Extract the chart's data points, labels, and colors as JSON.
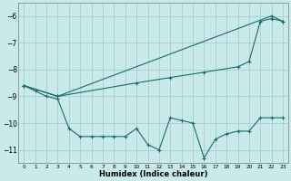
{
  "xlabel": "Humidex (Indice chaleur)",
  "background_color": "#c8eaea",
  "grid_color": "#aacece",
  "line_color": "#1a6b6b",
  "xlim": [
    -0.5,
    23.5
  ],
  "ylim": [
    -11.5,
    -5.5
  ],
  "yticks": [
    -11,
    -10,
    -9,
    -8,
    -7,
    -6
  ],
  "xticks": [
    0,
    1,
    2,
    3,
    4,
    5,
    6,
    7,
    8,
    9,
    10,
    11,
    12,
    13,
    14,
    15,
    16,
    17,
    18,
    19,
    20,
    21,
    22,
    23
  ],
  "line1_x": [
    0,
    1,
    2,
    3,
    4,
    5,
    6,
    7,
    8,
    9,
    10,
    11,
    12,
    13,
    14,
    15,
    16,
    17,
    18,
    19,
    20,
    21,
    22,
    23
  ],
  "line1_y": [
    -8.6,
    -8.8,
    -9.0,
    -9.1,
    -10.2,
    -10.5,
    -10.5,
    -10.5,
    -10.5,
    -10.5,
    -10.2,
    -10.8,
    -11.0,
    -9.8,
    -9.9,
    -10.0,
    -11.3,
    -10.6,
    -10.4,
    -10.3,
    -10.3,
    -9.8,
    -9.8,
    -9.8
  ],
  "line2_x": [
    0,
    3,
    10,
    13,
    16,
    19,
    20,
    21,
    22,
    23
  ],
  "line2_y": [
    -8.6,
    -9.0,
    -8.5,
    -8.3,
    -8.1,
    -7.9,
    -7.7,
    -6.2,
    -6.1,
    -6.2
  ],
  "line3_x": [
    0,
    3,
    22,
    23
  ],
  "line3_y": [
    -8.6,
    -9.0,
    -6.0,
    -6.2
  ]
}
